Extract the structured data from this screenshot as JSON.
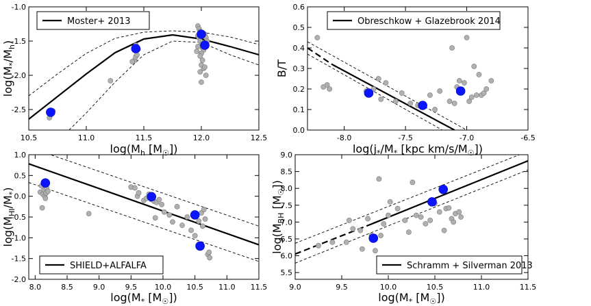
{
  "chart_data": [
    {
      "type": "scatter",
      "xlabel": "log(M_h [M_☉])",
      "ylabel": "log(M_*/M_h)",
      "xlim": [
        10.5,
        12.5
      ],
      "ylim": [
        -2.8,
        -1.0
      ],
      "xticks": [
        "10.5",
        "11.0",
        "11.5",
        "12.0",
        "12.5"
      ],
      "yticks": [
        "-2.5",
        "-2.0",
        "-1.5",
        "-1.0"
      ],
      "legend": "Moster+ 2013",
      "legend_position": "top-left",
      "relation": {
        "solid": [
          [
            10.5,
            -2.64
          ],
          [
            10.75,
            -2.31
          ],
          [
            11.0,
            -1.98
          ],
          [
            11.25,
            -1.67
          ],
          [
            11.5,
            -1.47
          ],
          [
            11.75,
            -1.41
          ],
          [
            12.0,
            -1.47
          ],
          [
            12.25,
            -1.58
          ],
          [
            12.5,
            -1.7
          ]
        ],
        "upper": [
          [
            10.5,
            -2.3
          ],
          [
            10.75,
            -1.98
          ],
          [
            11.0,
            -1.68
          ],
          [
            11.25,
            -1.46
          ],
          [
            11.5,
            -1.37
          ],
          [
            11.75,
            -1.35
          ],
          [
            12.0,
            -1.37
          ],
          [
            12.25,
            -1.44
          ],
          [
            12.5,
            -1.55
          ]
        ],
        "lower": [
          [
            10.85,
            -2.8
          ],
          [
            11.0,
            -2.55
          ],
          [
            11.25,
            -2.1
          ],
          [
            11.5,
            -1.7
          ],
          [
            11.75,
            -1.5
          ],
          [
            12.0,
            -1.52
          ],
          [
            12.25,
            -1.7
          ],
          [
            12.5,
            -1.85
          ]
        ]
      },
      "gray_points": [
        [
          10.69,
          -2.58
        ],
        [
          10.7,
          -2.55
        ],
        [
          10.68,
          -2.62
        ],
        [
          10.71,
          -2.52
        ],
        [
          11.21,
          -2.08
        ],
        [
          11.42,
          -1.78
        ],
        [
          11.43,
          -1.73
        ],
        [
          11.44,
          -1.7
        ],
        [
          11.4,
          -1.8
        ],
        [
          11.45,
          -1.62
        ],
        [
          11.43,
          -1.56
        ],
        [
          11.97,
          -1.28
        ],
        [
          11.98,
          -1.32
        ],
        [
          11.99,
          -1.36
        ],
        [
          11.97,
          -1.42
        ],
        [
          11.98,
          -1.45
        ],
        [
          11.99,
          -1.5
        ],
        [
          12.0,
          -1.55
        ],
        [
          11.97,
          -1.58
        ],
        [
          12.01,
          -1.6
        ],
        [
          12.02,
          -1.63
        ],
        [
          12.0,
          -1.68
        ],
        [
          11.99,
          -1.72
        ],
        [
          12.01,
          -1.78
        ],
        [
          12.0,
          -1.85
        ],
        [
          12.02,
          -1.9
        ],
        [
          11.99,
          -1.95
        ],
        [
          12.0,
          -2.1
        ],
        [
          12.03,
          -1.4
        ],
        [
          12.04,
          -1.45
        ],
        [
          12.05,
          -1.5
        ],
        [
          11.96,
          -1.65
        ],
        [
          12.03,
          -1.88
        ],
        [
          12.04,
          -2.0
        ]
      ],
      "blue_points": [
        [
          10.69,
          -2.54
        ],
        [
          11.43,
          -1.61
        ],
        [
          12.0,
          -1.4
        ],
        [
          12.03,
          -1.56
        ]
      ]
    },
    {
      "type": "scatter",
      "xlabel": "log(j_*/M_* [kpc km/s/M_☉])",
      "ylabel": "B/T",
      "xlim": [
        -8.3,
        -6.5
      ],
      "ylim": [
        0.0,
        0.6
      ],
      "xticks": [
        "-8.0",
        "-7.5",
        "-7.0",
        "-6.5"
      ],
      "yticks": [
        "0.0",
        "0.1",
        "0.2",
        "0.3",
        "0.4",
        "0.5",
        "0.6"
      ],
      "legend": "Obreschkow + Glazebrook 2014",
      "legend_position": "top",
      "relation": {
        "dashed": [
          [
            -8.3,
            0.4
          ],
          [
            -8.1,
            0.32
          ]
        ],
        "solid": [
          [
            -8.1,
            0.32
          ],
          [
            -7.1,
            0.0
          ]
        ],
        "upper": [
          [
            -8.3,
            0.43
          ],
          [
            -7.0,
            0.0
          ]
        ],
        "lower": [
          [
            -8.3,
            0.37
          ],
          [
            -7.2,
            0.0
          ]
        ]
      },
      "gray_points": [
        [
          -8.22,
          0.45
        ],
        [
          -8.17,
          0.21
        ],
        [
          -8.12,
          0.2
        ],
        [
          -8.14,
          0.22
        ],
        [
          -7.82,
          0.19
        ],
        [
          -7.76,
          0.2
        ],
        [
          -7.72,
          0.25
        ],
        [
          -7.7,
          0.15
        ],
        [
          -7.66,
          0.23
        ],
        [
          -7.58,
          0.14
        ],
        [
          -7.53,
          0.18
        ],
        [
          -7.46,
          0.13
        ],
        [
          -7.4,
          0.12
        ],
        [
          -7.3,
          0.17
        ],
        [
          -7.26,
          0.1
        ],
        [
          -7.22,
          0.19
        ],
        [
          -7.14,
          0.14
        ],
        [
          -7.12,
          0.4
        ],
        [
          -7.1,
          0.13
        ],
        [
          -7.06,
          0.24
        ],
        [
          -7.02,
          0.23
        ],
        [
          -6.98,
          0.14
        ],
        [
          -6.96,
          0.16
        ],
        [
          -6.94,
          0.31
        ],
        [
          -6.92,
          0.17
        ],
        [
          -6.9,
          0.27
        ],
        [
          -6.88,
          0.17
        ],
        [
          -6.86,
          0.18
        ],
        [
          -6.84,
          0.2
        ],
        [
          -6.8,
          0.24
        ],
        [
          -7.0,
          0.45
        ],
        [
          -7.08,
          0.21
        ]
      ],
      "blue_points": [
        [
          -7.8,
          0.18
        ],
        [
          -7.36,
          0.12
        ],
        [
          -7.05,
          0.19
        ]
      ]
    },
    {
      "type": "scatter",
      "xlabel": "log(M_* [M_☉])",
      "ylabel": "log(M_HI/M_*)",
      "xlim": [
        7.9,
        11.5
      ],
      "ylim": [
        -2.0,
        1.0
      ],
      "xticks": [
        "8.0",
        "8.5",
        "9.0",
        "9.5",
        "10.0",
        "10.5",
        "11.0",
        "11.5"
      ],
      "yticks": [
        "-2.0",
        "-1.5",
        "-1.0",
        "-0.5",
        "0.0",
        "0.5",
        "1.0"
      ],
      "legend": "SHIELD+ALFALFA",
      "legend_position": "bottom-left",
      "relation": {
        "solid": [
          [
            7.9,
            0.78
          ],
          [
            11.5,
            -1.17
          ]
        ],
        "upper": [
          [
            7.9,
            1.18
          ],
          [
            11.5,
            -0.72
          ]
        ],
        "lower": [
          [
            7.9,
            0.33
          ],
          [
            11.5,
            -1.57
          ]
        ]
      },
      "gray_points": [
        [
          8.08,
          0.1
        ],
        [
          8.1,
          0.25
        ],
        [
          8.12,
          0.05
        ],
        [
          8.14,
          0.15
        ],
        [
          8.15,
          0.0
        ],
        [
          8.16,
          -0.05
        ],
        [
          8.17,
          0.08
        ],
        [
          8.18,
          0.2
        ],
        [
          8.2,
          0.12
        ],
        [
          8.11,
          -0.28
        ],
        [
          8.84,
          -0.42
        ],
        [
          9.5,
          0.22
        ],
        [
          9.56,
          0.2
        ],
        [
          9.6,
          0.0
        ],
        [
          9.62,
          0.08
        ],
        [
          9.7,
          -0.1
        ],
        [
          9.74,
          -0.05
        ],
        [
          9.78,
          0.05
        ],
        [
          9.82,
          -0.08
        ],
        [
          9.86,
          -0.12
        ],
        [
          9.9,
          -0.15
        ],
        [
          9.94,
          -0.08
        ],
        [
          9.98,
          -0.2
        ],
        [
          9.88,
          -0.52
        ],
        [
          10.02,
          -0.38
        ],
        [
          10.1,
          -0.45
        ],
        [
          10.15,
          -0.62
        ],
        [
          10.22,
          -0.25
        ],
        [
          10.3,
          -0.7
        ],
        [
          10.38,
          -0.5
        ],
        [
          10.44,
          -0.82
        ],
        [
          10.5,
          -0.95
        ],
        [
          10.56,
          -0.6
        ],
        [
          10.6,
          -0.4
        ],
        [
          10.62,
          -0.72
        ],
        [
          10.64,
          -0.32
        ],
        [
          10.66,
          -0.55
        ],
        [
          10.7,
          -1.4
        ],
        [
          10.72,
          -1.35
        ],
        [
          10.73,
          -1.48
        ]
      ],
      "blue_points": [
        [
          8.16,
          0.32
        ],
        [
          9.82,
          -0.01
        ],
        [
          10.5,
          -0.45
        ],
        [
          10.58,
          -1.2
        ]
      ]
    },
    {
      "type": "scatter",
      "xlabel": "log(M_* [M_☉])",
      "ylabel": "log(M_BH [M_☉])",
      "xlim": [
        9.0,
        11.5
      ],
      "ylim": [
        5.3,
        9.0
      ],
      "xticks": [
        "9.0",
        "9.5",
        "10.0",
        "10.5",
        "11.0",
        "11.5"
      ],
      "yticks": [
        "5.5",
        "6.0",
        "6.5",
        "7.0",
        "7.5",
        "8.0",
        "8.5",
        "9.0"
      ],
      "legend": "Schramm + Silverman 2013",
      "legend_position": "bottom-right",
      "relation": {
        "dashed": [
          [
            9.0,
            6.05
          ],
          [
            9.8,
            6.92
          ]
        ],
        "solid": [
          [
            9.8,
            6.92
          ],
          [
            11.5,
            8.82
          ]
        ],
        "upper": [
          [
            9.0,
            6.37
          ],
          [
            11.5,
            9.1
          ]
        ],
        "lower": [
          [
            9.0,
            5.78
          ],
          [
            11.5,
            8.55
          ]
        ]
      },
      "gray_points": [
        [
          9.25,
          6.3
        ],
        [
          9.4,
          6.4
        ],
        [
          9.55,
          6.4
        ],
        [
          9.58,
          7.05
        ],
        [
          9.62,
          6.8
        ],
        [
          9.7,
          6.75
        ],
        [
          9.72,
          6.2
        ],
        [
          9.78,
          7.1
        ],
        [
          9.82,
          6.6
        ],
        [
          9.86,
          6.15
        ],
        [
          9.9,
          8.28
        ],
        [
          9.92,
          6.6
        ],
        [
          9.95,
          6.95
        ],
        [
          10.0,
          7.2
        ],
        [
          10.02,
          7.6
        ],
        [
          10.1,
          7.4
        ],
        [
          10.18,
          7.05
        ],
        [
          10.22,
          6.7
        ],
        [
          10.26,
          8.18
        ],
        [
          10.3,
          7.2
        ],
        [
          10.35,
          7.15
        ],
        [
          10.4,
          6.95
        ],
        [
          10.45,
          7.05
        ],
        [
          10.5,
          7.55
        ],
        [
          10.55,
          7.3
        ],
        [
          10.6,
          6.75
        ],
        [
          10.62,
          7.4
        ],
        [
          10.65,
          7.42
        ],
        [
          10.68,
          7.1
        ],
        [
          10.7,
          7.0
        ],
        [
          10.72,
          7.25
        ],
        [
          10.76,
          7.3
        ],
        [
          10.78,
          7.15
        ]
      ],
      "blue_points": [
        [
          9.84,
          6.52
        ],
        [
          10.47,
          7.6
        ],
        [
          10.59,
          7.97
        ]
      ]
    }
  ]
}
